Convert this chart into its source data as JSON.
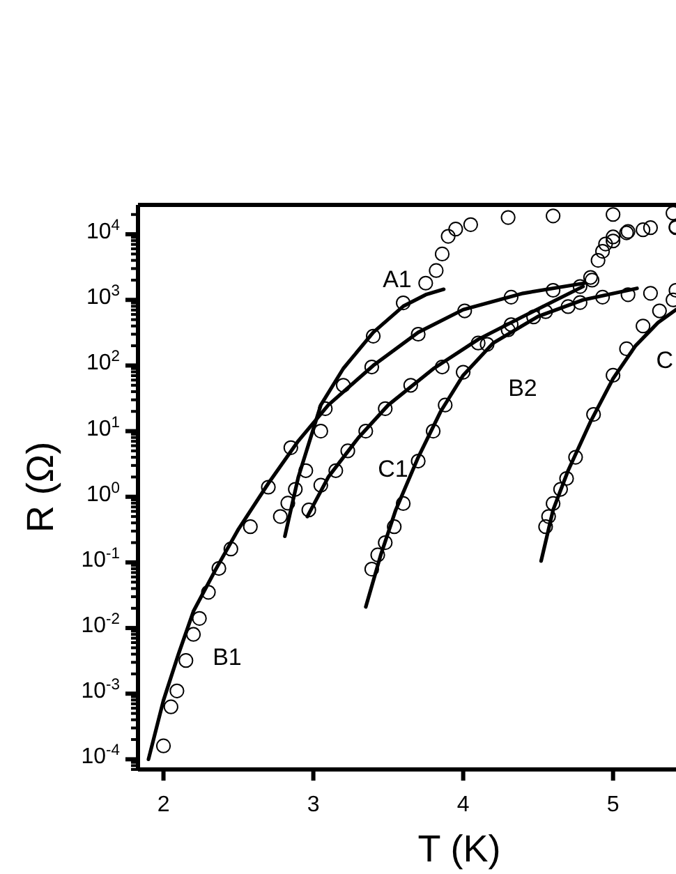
{
  "chart_data": {
    "type": "scatter",
    "xlabel": "T (K)",
    "ylabel": "R (Ω)",
    "log": "y",
    "grid": false,
    "xlim": [
      1.83,
      5.42
    ],
    "ylim": [
      7e-05,
      28000
    ],
    "xticks": [
      2,
      3,
      4,
      5
    ],
    "yticks": [
      {
        "value": 0.0001,
        "label": "10$^{-4}$"
      },
      {
        "value": 0.001,
        "label": "10$^{-3}$"
      },
      {
        "value": 0.01,
        "label": "10$^{-2}$"
      },
      {
        "value": 0.1,
        "label": "10$^{-1}$"
      },
      {
        "value": 1,
        "label": "10$^{0}$"
      },
      {
        "value": 10,
        "label": "10$^{1}$"
      },
      {
        "value": 100,
        "label": "10$^{2}$"
      },
      {
        "value": 1000,
        "label": "10$^{3}$"
      },
      {
        "value": 10000,
        "label": "10$^{4}$"
      }
    ],
    "series": [
      {
        "marker": "circle",
        "color": "#000000",
        "x": [
          2.78,
          2.83,
          2.88,
          2.95,
          3.05,
          3.2,
          3.4,
          3.6,
          3.75,
          3.82,
          3.86,
          3.9,
          3.95,
          4.05,
          4.3,
          4.6,
          5.0,
          5.4
        ],
        "values": [
          0.5,
          0.8,
          1.3,
          2.5,
          10,
          50,
          280,
          900,
          1800,
          2800,
          5000,
          9300,
          12000,
          14000,
          18000,
          19000,
          20000,
          21000
        ]
      },
      {
        "marker": "circle",
        "color": "#000000",
        "x": [
          2.0,
          2.05,
          2.09,
          2.15,
          2.2,
          2.24,
          2.3,
          2.37,
          2.45,
          2.58,
          2.7,
          2.85,
          3.08,
          3.39,
          3.7,
          4.01,
          4.32,
          4.6,
          4.78,
          4.85,
          4.9,
          4.95,
          5.0,
          5.1,
          5.25,
          5.42
        ],
        "values": [
          0.00016,
          0.00063,
          0.0011,
          0.0032,
          0.008,
          0.014,
          0.035,
          0.081,
          0.16,
          0.35,
          1.4,
          5.6,
          22,
          95,
          300,
          680,
          1100,
          1400,
          1600,
          2200,
          4000,
          7100,
          9100,
          11000,
          12600,
          13000
        ]
      },
      {
        "marker": "circle",
        "color": "#000000",
        "x": [
          2.97,
          3.05,
          3.15,
          3.23,
          3.35,
          3.48,
          3.65,
          3.86,
          4.1,
          4.32,
          4.55,
          4.78,
          4.86,
          4.93,
          5.0,
          5.09,
          5.2,
          5.42
        ],
        "values": [
          0.63,
          1.5,
          2.5,
          5,
          10,
          22,
          50,
          95,
          220,
          420,
          660,
          910,
          2000,
          5500,
          7900,
          10500,
          11700,
          12600
        ]
      },
      {
        "marker": "circle",
        "color": "#000000",
        "x": [
          3.39,
          3.43,
          3.48,
          3.54,
          3.6,
          3.7,
          3.8,
          3.88,
          4.0,
          4.16,
          4.3,
          4.47,
          4.7,
          4.93,
          5.1,
          5.25,
          5.42
        ],
        "values": [
          0.079,
          0.13,
          0.2,
          0.35,
          0.79,
          3.5,
          10,
          25,
          79,
          210,
          350,
          550,
          790,
          1100,
          1200,
          1260,
          1400
        ]
      },
      {
        "marker": "circle",
        "color": "#000000",
        "x": [
          4.55,
          4.57,
          4.6,
          4.65,
          4.69,
          4.75,
          4.87,
          5.0,
          5.09,
          5.2,
          5.31,
          5.4
        ],
        "values": [
          0.35,
          0.5,
          0.79,
          1.3,
          1.9,
          4,
          18,
          71,
          180,
          400,
          680,
          1000
        ]
      },
      {
        "type": "line",
        "color": "#000000",
        "marker": "none",
        "x": [
          2.81,
          2.9,
          3.05,
          3.2,
          3.4,
          3.6,
          3.75,
          3.87
        ],
        "values": [
          0.25,
          2,
          25,
          90,
          320,
          800,
          1200,
          1450
        ]
      },
      {
        "type": "line",
        "color": "#000000",
        "marker": "none",
        "x": [
          1.9,
          2.0,
          2.1,
          2.2,
          2.35,
          2.5,
          2.7,
          2.9,
          3.1,
          3.4,
          3.7,
          4.0,
          4.4,
          4.81
        ],
        "values": [
          0.0001,
          0.00079,
          0.004,
          0.018,
          0.079,
          0.32,
          1.6,
          7.1,
          25,
          100,
          320,
          710,
          1260,
          1800
        ]
      },
      {
        "type": "line",
        "color": "#000000",
        "marker": "none",
        "x": [
          2.96,
          3.1,
          3.3,
          3.5,
          3.8,
          4.1,
          4.4,
          4.8
        ],
        "values": [
          0.5,
          2,
          7.9,
          25,
          89,
          250,
          560,
          1600
        ]
      },
      {
        "type": "line",
        "color": "#000000",
        "marker": "none",
        "x": [
          3.35,
          3.45,
          3.55,
          3.7,
          3.85,
          4.0,
          4.2,
          4.5,
          4.8,
          5.16
        ],
        "values": [
          0.021,
          0.13,
          0.63,
          4,
          20,
          71,
          220,
          560,
          1000,
          1500
        ]
      },
      {
        "type": "line",
        "color": "#000000",
        "marker": "none",
        "x": [
          4.52,
          4.6,
          4.7,
          4.85,
          5.0,
          5.15,
          5.3,
          5.42
        ],
        "values": [
          0.105,
          0.63,
          2.5,
          14,
          63,
          200,
          450,
          710
        ]
      }
    ],
    "annotations": [
      "A1",
      "B1",
      "C1",
      "B2",
      "C"
    ]
  }
}
